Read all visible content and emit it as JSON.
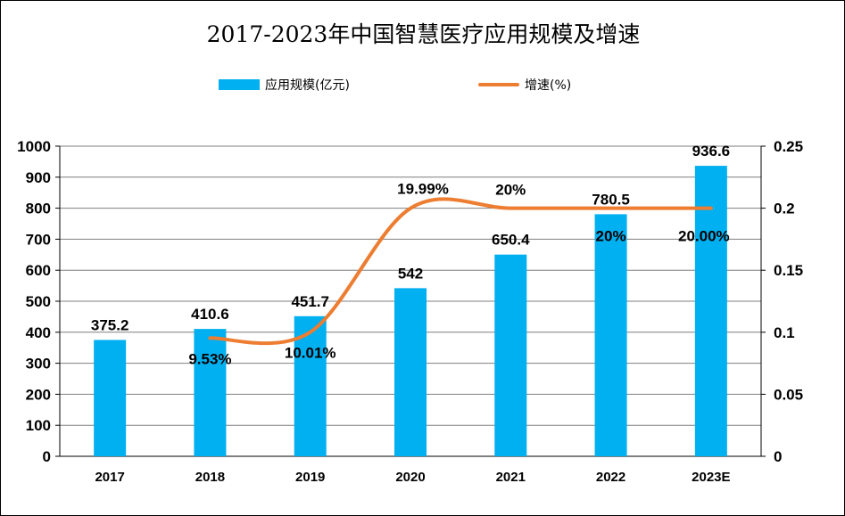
{
  "chart_data": {
    "type": "bar",
    "title": "2017-2023年中国智慧医疗应用规模及增速",
    "categories": [
      "2017",
      "2018",
      "2019",
      "2020",
      "2021",
      "2022",
      "2023E"
    ],
    "series": [
      {
        "name": "应用规模(亿元)",
        "type": "bar",
        "axis": "left",
        "values": [
          375.2,
          410.6,
          451.7,
          542,
          650.4,
          780.5,
          936.6
        ],
        "labels": [
          "375.2",
          "410.6",
          "451.7",
          "542",
          "650.4",
          "780.5",
          "936.6"
        ],
        "color": "#00B0F0"
      },
      {
        "name": "增速(%)",
        "type": "line",
        "axis": "right",
        "values": [
          null,
          0.0953,
          0.1001,
          0.1999,
          0.2,
          0.2,
          0.2
        ],
        "labels": [
          "",
          "9.53%",
          "10.01%",
          "19.99%",
          "20%",
          "20%",
          "20.00%"
        ],
        "color": "#ED7D31"
      }
    ],
    "ylim": [
      0,
      1000
    ],
    "y_ticks": [
      "0",
      "100",
      "200",
      "300",
      "400",
      "500",
      "600",
      "700",
      "800",
      "900",
      "1000"
    ],
    "y2lim": [
      0,
      0.25
    ],
    "y2_ticks": [
      "0",
      "0.05",
      "0.1",
      "0.15",
      "0.2",
      "0.25"
    ],
    "grid": true,
    "legend_position": "top"
  }
}
